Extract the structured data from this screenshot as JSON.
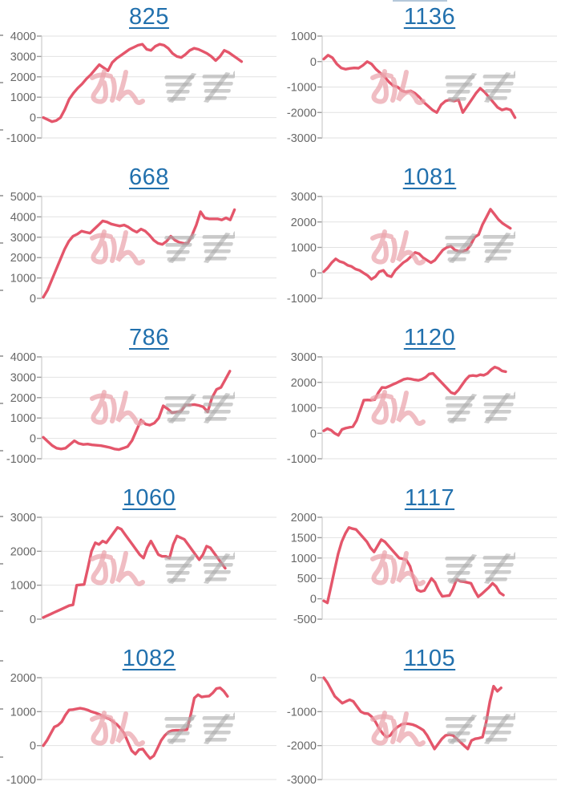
{
  "page": {
    "background": "#ffffff",
    "description_text": ""
  },
  "colors": {
    "line": "#e4566b",
    "grid": "#e2e2e2",
    "axis": "#cccccc",
    "tick": "#9a9a9a",
    "label": "#686868",
    "title_link": "#2170ad",
    "watermark_pink": "#eeb3ba",
    "watermark_gray": "#a8a8a8"
  },
  "watermark": {
    "text": "みんレポ",
    "part_pink": "みん",
    "part_gray": "レポ"
  },
  "chart_data": [
    {
      "type": "line",
      "title": "825",
      "xlabel": "",
      "ylabel": "",
      "ylim": [
        -1000,
        4000
      ],
      "yticks": [
        4000,
        3000,
        2000,
        1000,
        0,
        -1000
      ],
      "grid": true,
      "legend": "none",
      "x_end_frac": 0.85,
      "values": [
        0,
        -100,
        -200,
        -150,
        0,
        400,
        900,
        1200,
        1450,
        1650,
        1900,
        2100,
        2350,
        2600,
        2450,
        2300,
        2700,
        2900,
        3050,
        3200,
        3350,
        3450,
        3550,
        3600,
        3350,
        3300,
        3500,
        3600,
        3550,
        3400,
        3150,
        3000,
        2950,
        3100,
        3300,
        3400,
        3350,
        3250,
        3150,
        3000,
        2800,
        3000,
        3300,
        3200,
        3050,
        2900,
        2750
      ]
    },
    {
      "type": "line",
      "title": "1136",
      "xlabel": "",
      "ylabel": "",
      "ylim": [
        -3000,
        1000
      ],
      "yticks": [
        1000,
        0,
        -1000,
        -2000,
        -3000
      ],
      "grid": true,
      "legend": "none",
      "x_end_frac": 0.82,
      "values": [
        100,
        250,
        150,
        -100,
        -250,
        -300,
        -270,
        -250,
        -260,
        -150,
        0,
        -100,
        -300,
        -450,
        -600,
        -800,
        -950,
        -1000,
        -1150,
        -1200,
        -1150,
        -1250,
        -1400,
        -1600,
        -1750,
        -1900,
        -2000,
        -1700,
        -1550,
        -1500,
        -1550,
        -1500,
        -2000,
        -1750,
        -1500,
        -1250,
        -1050,
        -1200,
        -1400,
        -1600,
        -1800,
        -1900,
        -1850,
        -1900,
        -2200
      ]
    },
    {
      "type": "line",
      "title": "668",
      "xlabel": "",
      "ylabel": "",
      "ylim": [
        0,
        5000
      ],
      "yticks": [
        5000,
        4000,
        3000,
        2000,
        1000,
        0
      ],
      "grid": true,
      "legend": "none",
      "x_end_frac": 0.82,
      "values": [
        50,
        400,
        900,
        1400,
        1900,
        2400,
        2800,
        3050,
        3150,
        3300,
        3250,
        3200,
        3400,
        3600,
        3800,
        3750,
        3650,
        3600,
        3550,
        3600,
        3500,
        3350,
        3250,
        3400,
        3300,
        3100,
        2850,
        2700,
        2650,
        2800,
        3050,
        2850,
        2750,
        2700,
        2700,
        3100,
        3600,
        4250,
        3950,
        3900,
        3900,
        3900,
        3850,
        3950,
        3850,
        4350
      ]
    },
    {
      "type": "line",
      "title": "1081",
      "xlabel": "",
      "ylabel": "",
      "ylim": [
        -1000,
        3000
      ],
      "yticks": [
        3000,
        2000,
        1000,
        0,
        -1000
      ],
      "grid": true,
      "legend": "none",
      "x_end_frac": 0.8,
      "values": [
        50,
        200,
        400,
        550,
        450,
        400,
        300,
        250,
        150,
        100,
        0,
        -100,
        -250,
        -150,
        50,
        100,
        -100,
        -150,
        100,
        250,
        400,
        500,
        650,
        800,
        750,
        600,
        500,
        400,
        500,
        700,
        900,
        1000,
        1050,
        900,
        850,
        850,
        900,
        1100,
        1400,
        1500,
        1900,
        2200,
        2500,
        2300,
        2100,
        1950,
        1850,
        1750
      ]
    },
    {
      "type": "line",
      "title": "786",
      "xlabel": "",
      "ylabel": "",
      "ylim": [
        -1000,
        4000
      ],
      "yticks": [
        4000,
        3000,
        2000,
        1000,
        0,
        -1000
      ],
      "grid": true,
      "legend": "none",
      "x_end_frac": 0.8,
      "values": [
        50,
        -150,
        -350,
        -480,
        -520,
        -480,
        -300,
        -120,
        -250,
        -300,
        -280,
        -320,
        -340,
        -360,
        -400,
        -450,
        -520,
        -550,
        -480,
        -400,
        -100,
        400,
        900,
        700,
        650,
        750,
        1000,
        1600,
        1450,
        1250,
        1300,
        1320,
        1650,
        1640,
        1660,
        1620,
        1550,
        1300,
        2000,
        2400,
        2500,
        2900,
        3300
      ]
    },
    {
      "type": "line",
      "title": "1120",
      "xlabel": "",
      "ylabel": "",
      "ylim": [
        -1000,
        3000
      ],
      "yticks": [
        3000,
        2000,
        1000,
        0,
        -1000
      ],
      "grid": true,
      "legend": "none",
      "x_end_frac": 0.78,
      "values": [
        100,
        180,
        120,
        0,
        -80,
        150,
        200,
        230,
        260,
        500,
        900,
        1300,
        1310,
        1300,
        1320,
        1600,
        1800,
        1790,
        1850,
        1920,
        1980,
        2050,
        2120,
        2150,
        2130,
        2100,
        2080,
        2120,
        2200,
        2330,
        2350,
        2200,
        2050,
        1900,
        1750,
        1600,
        1550,
        1700,
        1900,
        2100,
        2250,
        2270,
        2250,
        2300,
        2280,
        2350,
        2500,
        2600,
        2550,
        2450,
        2420
      ]
    },
    {
      "type": "line",
      "title": "1060",
      "xlabel": "",
      "ylabel": "",
      "ylim": [
        0,
        3000
      ],
      "yticks": [
        3000,
        2000,
        1000,
        0
      ],
      "grid": true,
      "legend": "none",
      "x_end_frac": 0.78,
      "values": [
        50,
        100,
        150,
        200,
        250,
        300,
        350,
        400,
        420,
        1000,
        1010,
        1020,
        1500,
        2000,
        2250,
        2200,
        2300,
        2250,
        2400,
        2550,
        2700,
        2650,
        2500,
        2350,
        2200,
        2050,
        1900,
        1800,
        2100,
        2300,
        2100,
        1900,
        1850,
        1850,
        1800,
        2200,
        2450,
        2400,
        2350,
        2200,
        2050,
        1900,
        1750,
        1900,
        2150,
        2100,
        1950,
        1800,
        1650,
        1500
      ]
    },
    {
      "type": "line",
      "title": "1117",
      "xlabel": "",
      "ylabel": "",
      "ylim": [
        -500,
        2000
      ],
      "yticks": [
        2000,
        1500,
        1000,
        500,
        0,
        -500
      ],
      "grid": true,
      "legend": "none",
      "x_end_frac": 0.77,
      "values": [
        -50,
        -100,
        300,
        700,
        1100,
        1400,
        1600,
        1750,
        1720,
        1700,
        1600,
        1500,
        1400,
        1250,
        1150,
        1300,
        1450,
        1400,
        1300,
        1200,
        1100,
        1000,
        980,
        950,
        800,
        500,
        220,
        180,
        200,
        350,
        500,
        400,
        200,
        60,
        70,
        80,
        250,
        480,
        430,
        420,
        400,
        380,
        200,
        50,
        120,
        200,
        280,
        380,
        300,
        150,
        90
      ]
    },
    {
      "type": "line",
      "title": "1082",
      "xlabel": "",
      "ylabel": "",
      "ylim": [
        -1000,
        2000
      ],
      "yticks": [
        2000,
        1000,
        0,
        -1000
      ],
      "grid": true,
      "legend": "none",
      "x_end_frac": 0.79,
      "values": [
        0,
        150,
        350,
        550,
        600,
        700,
        900,
        1050,
        1060,
        1080,
        1100,
        1080,
        1050,
        1000,
        970,
        930,
        880,
        820,
        780,
        700,
        620,
        500,
        350,
        100,
        -150,
        -250,
        -120,
        -100,
        -250,
        -380,
        -300,
        -80,
        150,
        300,
        400,
        440,
        450,
        450,
        460,
        470,
        900,
        1400,
        1500,
        1430,
        1450,
        1460,
        1550,
        1680,
        1700,
        1600,
        1450
      ]
    },
    {
      "type": "line",
      "title": "1105",
      "xlabel": "",
      "ylabel": "",
      "ylim": [
        -3000,
        0
      ],
      "yticks": [
        0,
        -1000,
        -2000,
        -3000
      ],
      "grid": true,
      "legend": "none",
      "x_end_frac": 0.76,
      "values": [
        0,
        -150,
        -350,
        -550,
        -650,
        -750,
        -700,
        -650,
        -700,
        -850,
        -1000,
        -1050,
        -1060,
        -1150,
        -1300,
        -1500,
        -1650,
        -1750,
        -1700,
        -1550,
        -1450,
        -1380,
        -1350,
        -1360,
        -1380,
        -1420,
        -1480,
        -1550,
        -1700,
        -1900,
        -2100,
        -1950,
        -1800,
        -1700,
        -1680,
        -1700,
        -1800,
        -1900,
        -2000,
        -2100,
        -1850,
        -1800,
        -1780,
        -1750,
        -1300,
        -700,
        -250,
        -400,
        -300
      ]
    }
  ]
}
